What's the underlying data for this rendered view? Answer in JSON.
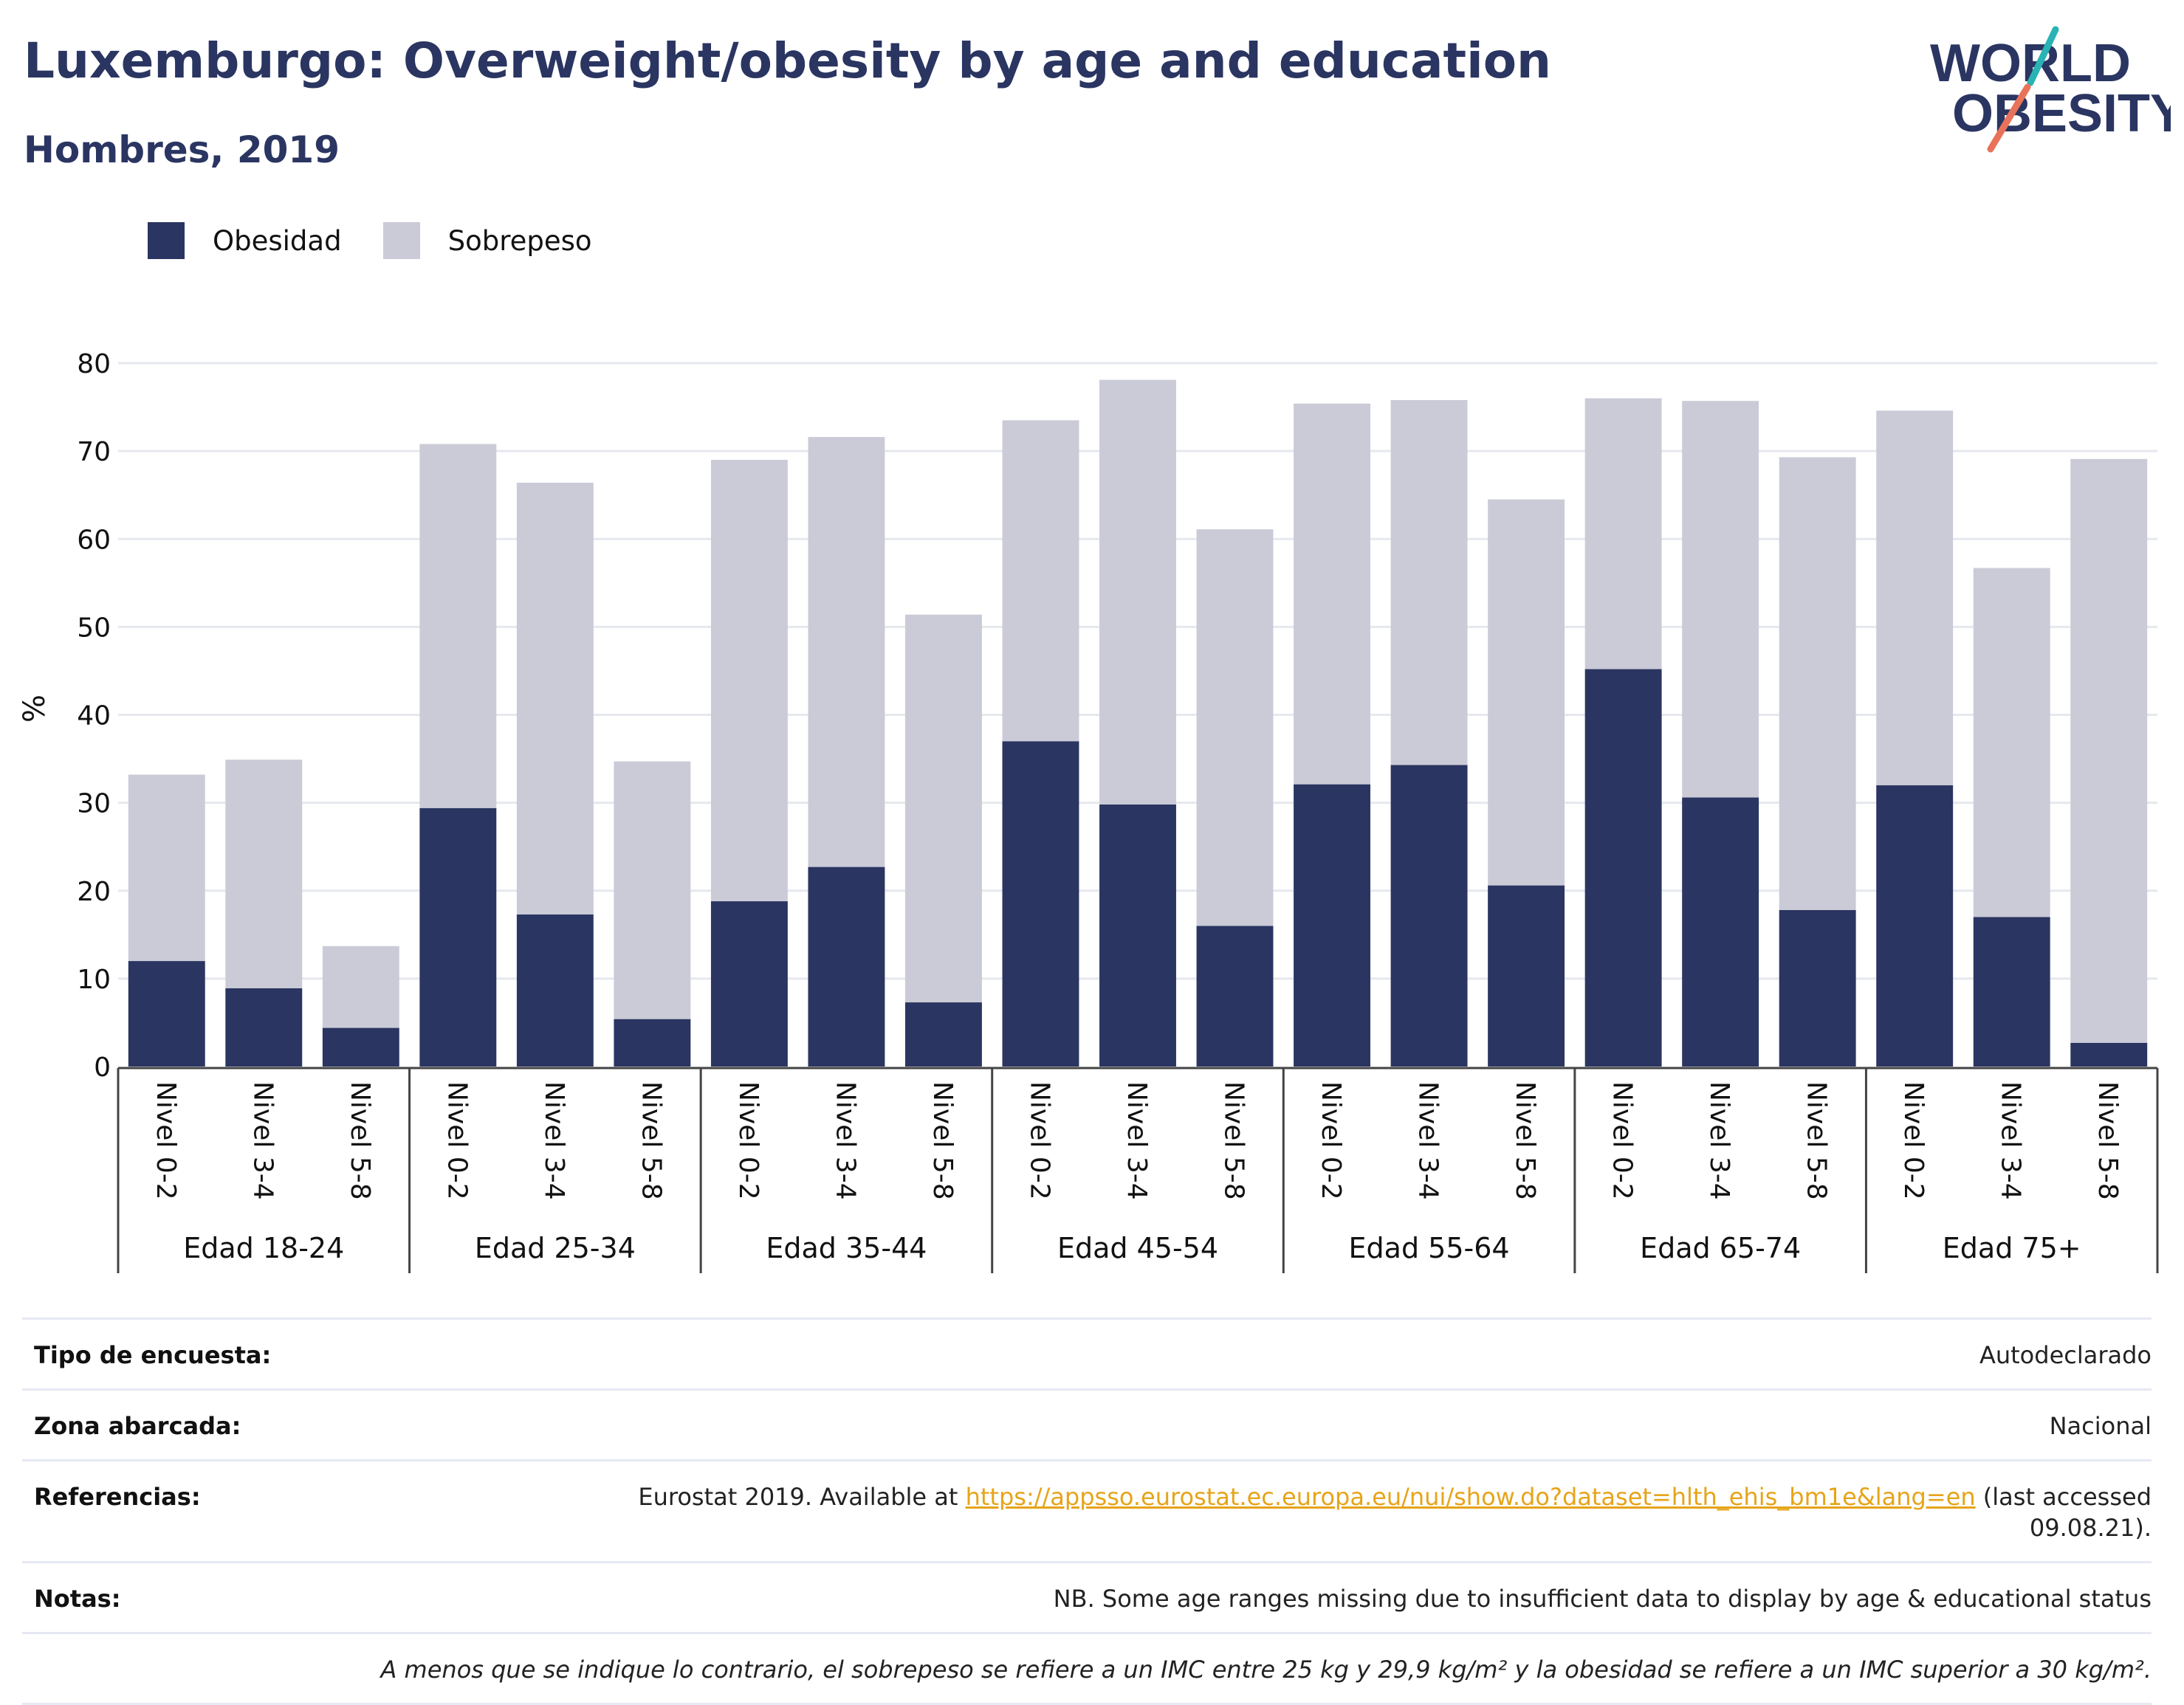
{
  "title": "Luxemburgo: Overweight/obesity by age and education",
  "subtitle": "Hombres, 2019",
  "logo": {
    "line1": "WORLD",
    "line2": "OBESITY"
  },
  "colors": {
    "obesity": "#2a3561",
    "overweight": "#cacbd7",
    "title": "#2a3561",
    "accent_teal": "#2ab3b4",
    "accent_coral": "#e8735a",
    "link": "#e6a419"
  },
  "legend": [
    {
      "label": "Obesidad",
      "color": "#2a3561"
    },
    {
      "label": "Sobrepeso",
      "color": "#cacbd7"
    }
  ],
  "chart_data": {
    "type": "bar",
    "stacked": true,
    "ylabel": "%",
    "ylim": [
      0,
      80
    ],
    "yticks": [
      0,
      10,
      20,
      30,
      40,
      50,
      60,
      70,
      80
    ],
    "grid": true,
    "legend_position": "top-left",
    "groups": [
      "Edad 18-24",
      "Edad 25-34",
      "Edad 35-44",
      "Edad 45-54",
      "Edad 55-64",
      "Edad 65-74",
      "Edad 75+"
    ],
    "subcategories": [
      "Nivel 0-2",
      "Nivel 3-4",
      "Nivel 5-8"
    ],
    "series": [
      {
        "name": "Obesidad",
        "values": [
          12.0,
          8.9,
          4.4,
          29.4,
          17.3,
          5.4,
          18.8,
          22.7,
          7.3,
          37.0,
          29.8,
          16.0,
          32.1,
          34.3,
          20.6,
          45.2,
          30.6,
          17.8,
          32.0,
          17.0,
          2.7
        ]
      },
      {
        "name": "Sobrepeso",
        "values": [
          21.2,
          26.0,
          9.3,
          41.4,
          49.1,
          29.3,
          50.2,
          48.9,
          44.1,
          36.5,
          48.3,
          45.1,
          43.3,
          41.5,
          43.9,
          30.8,
          45.1,
          51.5,
          42.6,
          39.7,
          66.4
        ]
      }
    ]
  },
  "info": {
    "survey_label": "Tipo de encuesta:",
    "survey_value": "Autodeclarado",
    "area_label": "Zona abarcada:",
    "area_value": "Nacional",
    "refs_label": "Referencias:",
    "refs_prefix": "Eurostat 2019. Available at ",
    "refs_link": "https://appsso.eurostat.ec.europa.eu/nui/show.do?dataset=hlth_ehis_bm1e&lang=en",
    "refs_suffix": " (last accessed",
    "refs_date": "09.08.21).",
    "notes_label": "Notas:",
    "notes_value": "NB. Some age ranges missing due to insufficient data to display by age & educational status",
    "footnote": "A menos que se indique lo contrario, el sobrepeso se refiere a un IMC entre 25 kg y 29,9 kg/m² y la obesidad se refiere a un IMC superior a 30 kg/m²."
  }
}
